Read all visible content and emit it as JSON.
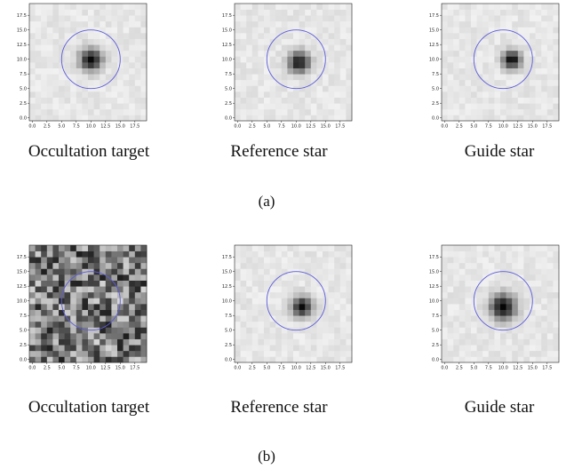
{
  "figure": {
    "rows": [
      {
        "label": "(a)",
        "panels": [
          {
            "caption": "Occultation target",
            "cutout": "target-faint-centered",
            "mode": "star",
            "star": [
              10,
              10
            ],
            "sigma": 1.3,
            "peak": 0.9
          },
          {
            "caption": "Reference star",
            "cutout": "reference",
            "mode": "star",
            "star": [
              10.5,
              9.5
            ],
            "sigma": 1.3,
            "peak": 0.85
          },
          {
            "caption": "Guide star",
            "cutout": "guide",
            "mode": "star",
            "star": [
              11.5,
              10
            ],
            "sigma": 1.1,
            "peak": 0.9
          }
        ]
      },
      {
        "label": "(b)",
        "panels": [
          {
            "caption": "Occultation target",
            "cutout": "target-noise-only",
            "mode": "noise"
          },
          {
            "caption": "Reference star",
            "cutout": "reference",
            "mode": "star",
            "star": [
              11,
              9
            ],
            "sigma": 1.2,
            "peak": 0.9
          },
          {
            "caption": "Guide star",
            "cutout": "guide-bright",
            "mode": "star",
            "star": [
              10,
              9
            ],
            "sigma": 1.5,
            "peak": 0.95
          }
        ]
      }
    ],
    "axis": {
      "ticks": [
        "0.0",
        "2.5",
        "5.0",
        "7.5",
        "10.0",
        "12.5",
        "15.0",
        "17.5"
      ],
      "tick_values": [
        0,
        2.5,
        5,
        7.5,
        10,
        12.5,
        15,
        17.5
      ],
      "range": [
        -0.5,
        19.5
      ]
    },
    "aperture": {
      "center": [
        10,
        10
      ],
      "radius": 5,
      "color": "#5b5bdc"
    }
  }
}
